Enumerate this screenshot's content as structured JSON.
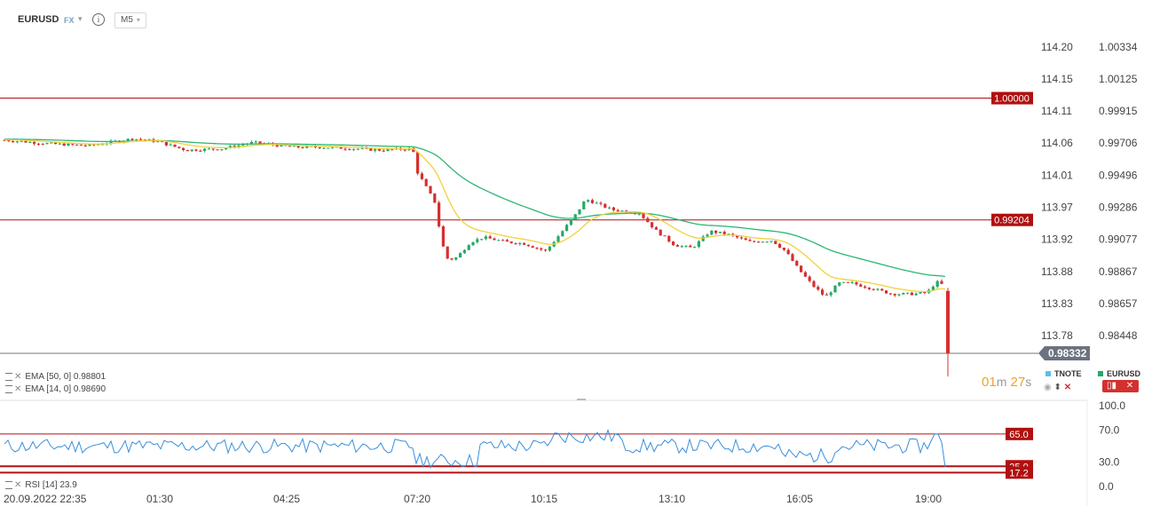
{
  "toolbar": {
    "symbol": "EURUSD",
    "market": "FX",
    "info_label": "i",
    "timeframe": "M5"
  },
  "price_axis_left": [
    "114.20",
    "114.15",
    "114.11",
    "114.06",
    "114.01",
    "113.97",
    "113.92",
    "113.88",
    "113.83",
    "113.78"
  ],
  "price_axis_right": [
    "1.00334",
    "1.00125",
    "0.99915",
    "0.99706",
    "0.99496",
    "0.99286",
    "0.99077",
    "0.98867",
    "0.98657",
    "0.98448"
  ],
  "levels": [
    {
      "label": "1.00000",
      "price": 1.0,
      "color": "#b01010"
    },
    {
      "label": "0.99204",
      "price": 0.99204,
      "color": "#b01010"
    }
  ],
  "current_price": {
    "label": "0.98332",
    "price": 0.98332,
    "color": "#6b7280"
  },
  "indicators": [
    {
      "name": "EMA",
      "params": "[50, 0]",
      "value": "0.98801",
      "color": "#2bb673"
    },
    {
      "name": "EMA",
      "params": "[14, 0]",
      "value": "0.98690",
      "color": "#f2d13a"
    }
  ],
  "countdown": {
    "minutes": "01",
    "minutes_unit": "m",
    "seconds": "27",
    "seconds_unit": "s"
  },
  "legend": {
    "tnote": "TNOTE",
    "eurusd": "EURUSD"
  },
  "rsi": {
    "label": "RSI",
    "params": "[14]",
    "value": "23.9",
    "axis": [
      "100.0",
      "70.0",
      "30.0",
      "0.0"
    ],
    "levels": [
      {
        "label": "65.0",
        "value": 65.0
      },
      {
        "label": "25.0",
        "value": 25.0
      },
      {
        "label": "17.2",
        "value": 17.2
      }
    ]
  },
  "time_axis": [
    "20.09.2022  22:35",
    "01:30",
    "04:25",
    "07:20",
    "10:15",
    "13:10",
    "16:05",
    "19:00"
  ],
  "colors": {
    "up": "#27a869",
    "down": "#d43030",
    "ema50": "#2bb673",
    "ema14": "#f2d13a",
    "rsi": "#3a8fdc",
    "level": "#b01010"
  }
}
